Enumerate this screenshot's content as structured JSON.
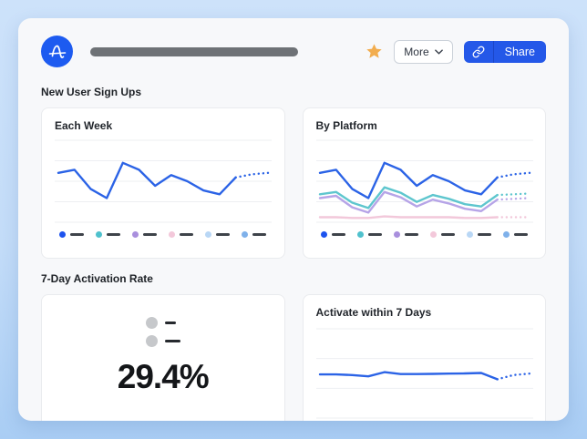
{
  "header": {
    "logo_bg": "#1d5bf0",
    "star_color": "#f2ad4e",
    "more_label": "More",
    "share_label": "Share",
    "share_bg": "#2458e8",
    "title_placeholder": "redacted-bar"
  },
  "sections": {
    "signups_title": "New User Sign Ups",
    "activation_title": "7-Day Activation Rate"
  },
  "legend": {
    "colors": [
      "#1d53ee",
      "#4fc1cd",
      "#a98fdd",
      "#f3c8da",
      "#b9d7f5",
      "#7fb1ea"
    ],
    "dash_color": "#3e434a",
    "labels_redacted": true
  },
  "big_stat": {
    "value": "29.4%",
    "placeholder_rows": 2
  },
  "chart_data": [
    {
      "id": "each-week",
      "type": "line",
      "title": "Each Week",
      "x_labels": [],
      "ylim": [
        0,
        100
      ],
      "grid_lines": 5,
      "legend_position": "bottom",
      "note": "axes unlabeled in source; values estimated from line geometry, dotted tail = forecast",
      "series": [
        {
          "name": "series-1",
          "color": "#2b63e6",
          "values": [
            61,
            65,
            40,
            28,
            74,
            65,
            44,
            58,
            50,
            38,
            33,
            55,
            59,
            61
          ],
          "forecast_from": 11
        }
      ]
    },
    {
      "id": "by-platform",
      "type": "line",
      "title": "By Platform",
      "x_labels": [],
      "ylim": [
        0,
        100
      ],
      "grid_lines": 5,
      "legend_position": "bottom",
      "series": [
        {
          "name": "series-1",
          "color": "#2b63e6",
          "values": [
            61,
            65,
            40,
            28,
            74,
            65,
            44,
            58,
            50,
            38,
            33,
            55,
            59,
            61
          ],
          "forecast_from": 11
        },
        {
          "name": "series-2",
          "color": "#5ec6ce",
          "values": [
            33,
            36,
            22,
            15,
            42,
            35,
            23,
            32,
            27,
            20,
            17,
            32,
            33,
            34
          ],
          "forecast_from": 11
        },
        {
          "name": "series-3",
          "color": "#b6a4e7",
          "values": [
            28,
            31,
            16,
            9,
            36,
            29,
            17,
            26,
            21,
            14,
            11,
            26,
            27,
            28
          ],
          "forecast_from": 11
        },
        {
          "name": "series-4",
          "color": "#f2c8da",
          "values": [
            3,
            3,
            2,
            2,
            4,
            3,
            3,
            3,
            3,
            2,
            2,
            3,
            3,
            3
          ],
          "forecast_from": 11
        }
      ]
    },
    {
      "id": "activate-7d",
      "type": "line",
      "title": "Activate within 7 Days",
      "x_labels": [],
      "ylim": [
        10,
        50
      ],
      "grid_lines": 4,
      "series": [
        {
          "name": "series-1",
          "color": "#2b63e6",
          "values": [
            29.5,
            29.5,
            29.2,
            28.6,
            30.6,
            29.7,
            29.7,
            29.8,
            29.9,
            30.0,
            30.2,
            27.2,
            29.2,
            29.9
          ],
          "forecast_from": 11
        }
      ]
    }
  ]
}
